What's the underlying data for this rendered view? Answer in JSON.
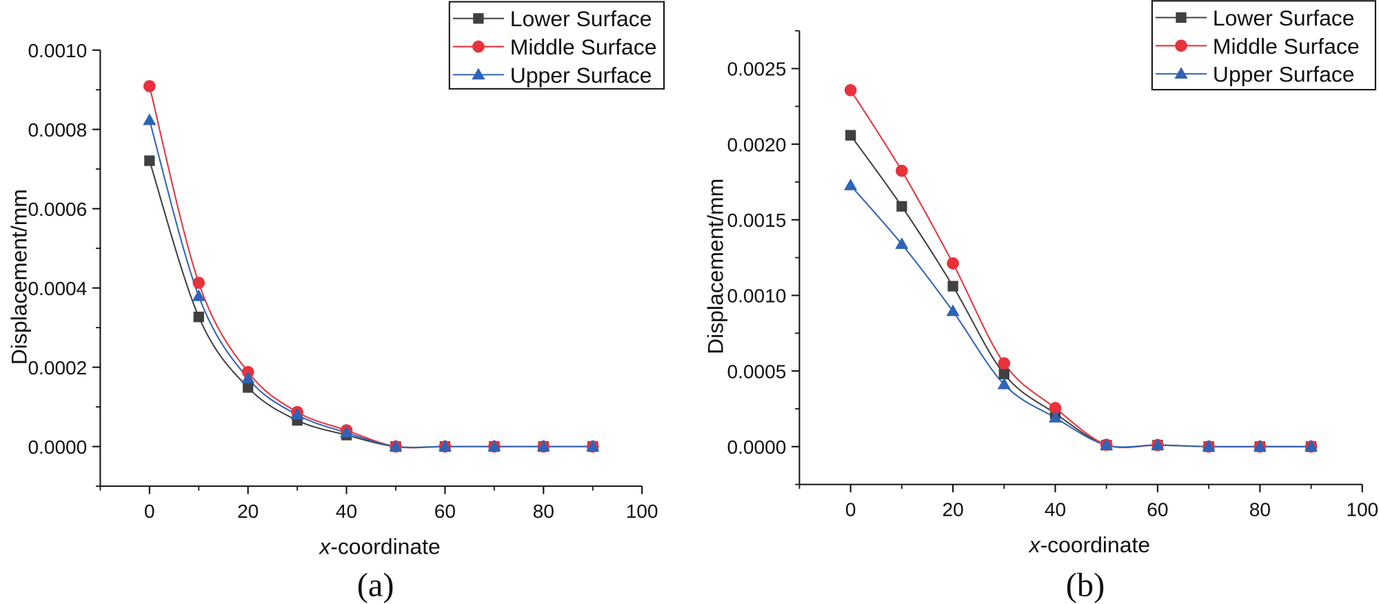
{
  "chart_data": [
    {
      "type": "line",
      "panel_label": "(a)",
      "xlabel_italic": "x",
      "xlabel_rest": "-coordinate",
      "ylabel": "Displacement/mm",
      "xlim": [
        -10,
        100
      ],
      "ylim": [
        -0.0001,
        0.001
      ],
      "x_ticks": [
        0,
        20,
        40,
        60,
        80,
        100
      ],
      "x_tick_labels": [
        "0",
        "20",
        "40",
        "60",
        "80",
        "100"
      ],
      "x_minor_step": 10,
      "y_ticks": [
        0,
        0.0002,
        0.0004,
        0.0006,
        0.0008,
        0.001
      ],
      "y_tick_labels": [
        "0.0000",
        "0.0002",
        "0.0004",
        "0.0006",
        "0.0008",
        "0.0010"
      ],
      "y_minor_step": 0.0001,
      "grid": false,
      "legend_position": "top-right",
      "x": [
        0,
        10,
        20,
        30,
        40,
        50,
        60,
        70,
        80,
        90
      ],
      "series": [
        {
          "name": "Lower Surface",
          "marker": "square",
          "color": "#404040",
          "values": [
            0.000721,
            0.000327,
            0.000149,
            6.6e-05,
            2.9e-05,
            0,
            0,
            0,
            0,
            0
          ]
        },
        {
          "name": "Middle Surface",
          "marker": "circle",
          "color": "#e8323c",
          "values": [
            0.000909,
            0.000413,
            0.000188,
            8.7e-05,
            4.1e-05,
            0,
            0,
            0,
            0,
            0
          ]
        },
        {
          "name": "Upper Surface",
          "marker": "triangle",
          "color": "#2f63b5",
          "values": [
            0.000823,
            0.000379,
            0.000172,
            8e-05,
            3.5e-05,
            0,
            0,
            0,
            0,
            0
          ]
        }
      ]
    },
    {
      "type": "line",
      "panel_label": "(b)",
      "xlabel_italic": "x",
      "xlabel_rest": "-coordinate",
      "ylabel": "Displacement/mm",
      "xlim": [
        -10,
        100
      ],
      "ylim": [
        -0.00025,
        0.00275
      ],
      "x_ticks": [
        0,
        20,
        40,
        60,
        80,
        100
      ],
      "x_tick_labels": [
        "0",
        "20",
        "40",
        "60",
        "80",
        "100"
      ],
      "x_minor_step": 10,
      "y_ticks": [
        0,
        0.0005,
        0.001,
        0.0015,
        0.002,
        0.0025
      ],
      "y_tick_labels": [
        "0.0000",
        "0.0005",
        "0.0010",
        "0.0015",
        "0.0020",
        "0.0025"
      ],
      "y_minor_step": 0.00025,
      "grid": false,
      "legend_position": "top-right",
      "x": [
        0,
        10,
        20,
        30,
        40,
        50,
        60,
        70,
        80,
        90
      ],
      "series": [
        {
          "name": "Lower Surface",
          "marker": "square",
          "color": "#404040",
          "values": [
            0.002059,
            0.001589,
            0.001061,
            0.00048,
            0.000219,
            1e-05,
            1e-05,
            0,
            0,
            0
          ]
        },
        {
          "name": "Middle Surface",
          "marker": "circle",
          "color": "#e8323c",
          "values": [
            0.002357,
            0.001824,
            0.001212,
            0.000551,
            0.000255,
            1.2e-05,
            1e-05,
            0,
            0,
            0
          ]
        },
        {
          "name": "Upper Surface",
          "marker": "triangle",
          "color": "#2f63b5",
          "values": [
            0.001727,
            0.001339,
            0.000895,
            0.000411,
            0.000191,
            1e-05,
            1e-05,
            0,
            0,
            0
          ]
        }
      ]
    }
  ]
}
